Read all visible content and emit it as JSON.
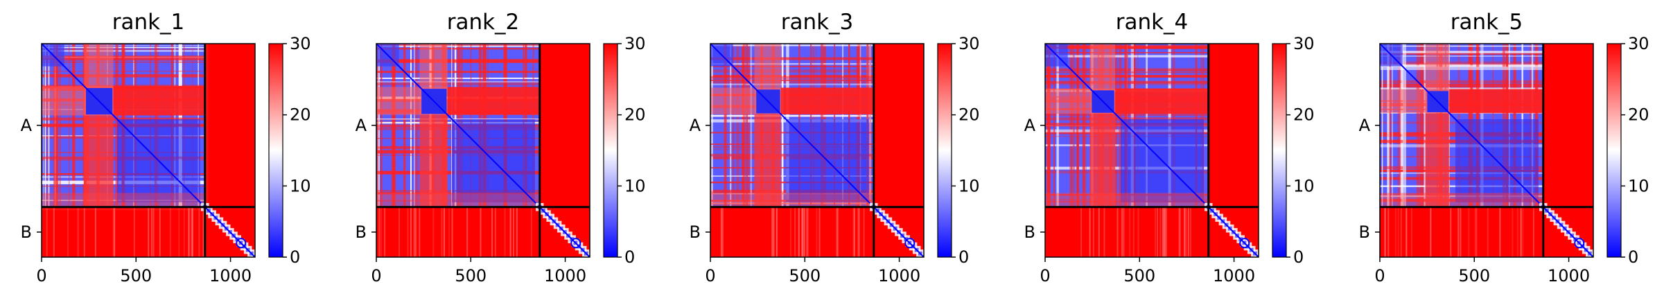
{
  "colorbar": {
    "ticks": [
      0,
      10,
      20,
      30
    ],
    "colors": {
      "low": "#0000ff",
      "mid": "#ffffff",
      "high": "#ff0000"
    }
  },
  "chart_data": [
    {
      "type": "heatmap",
      "title": "rank_1",
      "xlabel": "",
      "ylabel": "",
      "xlim": [
        0,
        1130
      ],
      "xticks": [
        0,
        500,
        1000
      ],
      "chain_boundary": 865,
      "ylabels": [
        "A",
        "B"
      ],
      "clim": [
        0,
        30
      ],
      "colorbar_ticks": [
        0,
        10,
        20,
        30
      ]
    },
    {
      "type": "heatmap",
      "title": "rank_2",
      "xlabel": "",
      "ylabel": "",
      "xlim": [
        0,
        1130
      ],
      "xticks": [
        0,
        500,
        1000
      ],
      "chain_boundary": 865,
      "ylabels": [
        "A",
        "B"
      ],
      "clim": [
        0,
        30
      ],
      "colorbar_ticks": [
        0,
        10,
        20,
        30
      ]
    },
    {
      "type": "heatmap",
      "title": "rank_3",
      "xlabel": "",
      "ylabel": "",
      "xlim": [
        0,
        1130
      ],
      "xticks": [
        0,
        500,
        1000
      ],
      "chain_boundary": 865,
      "ylabels": [
        "A",
        "B"
      ],
      "clim": [
        0,
        30
      ],
      "colorbar_ticks": [
        0,
        10,
        20,
        30
      ]
    },
    {
      "type": "heatmap",
      "title": "rank_4",
      "xlabel": "",
      "ylabel": "",
      "xlim": [
        0,
        1130
      ],
      "xticks": [
        0,
        500,
        1000
      ],
      "chain_boundary": 865,
      "ylabels": [
        "A",
        "B"
      ],
      "clim": [
        0,
        30
      ],
      "colorbar_ticks": [
        0,
        10,
        20,
        30
      ]
    },
    {
      "type": "heatmap",
      "title": "rank_5",
      "xlabel": "",
      "ylabel": "",
      "xlim": [
        0,
        1130
      ],
      "xticks": [
        0,
        500,
        1000
      ],
      "chain_boundary": 865,
      "ylabels": [
        "A",
        "B"
      ],
      "clim": [
        0,
        30
      ],
      "colorbar_ticks": [
        0,
        10,
        20,
        30
      ]
    }
  ]
}
